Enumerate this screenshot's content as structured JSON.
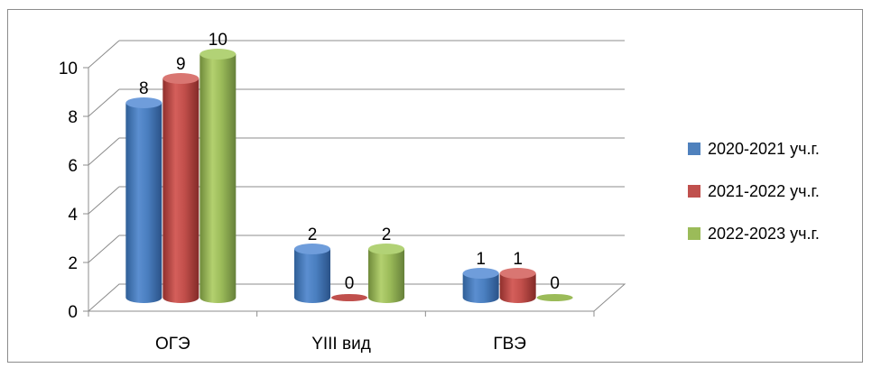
{
  "chart_data": {
    "type": "bar",
    "title": "",
    "xlabel": "",
    "ylabel": "",
    "ylim": [
      0,
      10
    ],
    "yticks": [
      "0",
      "2",
      "4",
      "6",
      "8",
      "10"
    ],
    "categories": [
      "ОГЭ",
      "YIII вид",
      "ГВЭ"
    ],
    "series": [
      {
        "name": "2020-2021 уч.г.",
        "color": "#4f81bd",
        "values": [
          8,
          2,
          1
        ]
      },
      {
        "name": "2021-2022 уч.г.",
        "color": "#c0504d",
        "values": [
          9,
          0,
          1
        ]
      },
      {
        "name": "2022-2023 уч.г.",
        "color": "#9bbb59",
        "values": [
          10,
          2,
          0
        ]
      }
    ],
    "data_labels": [
      [
        "8",
        "2",
        "1"
      ],
      [
        "9",
        "0",
        "1"
      ],
      [
        "10",
        "2",
        "0"
      ]
    ],
    "grid": true,
    "style": "3d-cylinder",
    "legend_position": "right"
  }
}
